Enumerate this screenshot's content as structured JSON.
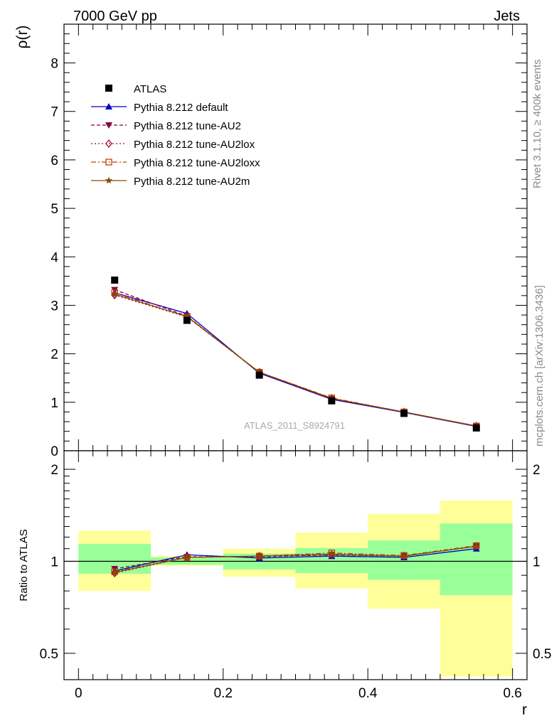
{
  "header": {
    "left": "7000 GeV pp",
    "right": "Jets"
  },
  "side_text": {
    "rivet": "Rivet 3.1.10, ≥ 400k events",
    "mcplots": "mcplots.cern.ch [arXiv:1306.3436]"
  },
  "colors": {
    "data": "#000000",
    "default": "#0000cc",
    "AU2": "#800040",
    "AU2lox": "#a0004a",
    "AU2loxx": "#c04000",
    "AU2m": "#8a4a00",
    "band_inner": "#99ff99",
    "band_outer": "#ffff99"
  },
  "chart_data": [
    {
      "type": "line",
      "panel": "main",
      "ylabel": "ρ(r)",
      "xlim": [
        -0.02,
        0.62
      ],
      "ylim": [
        0,
        8.8
      ],
      "yticks": [
        0,
        1,
        2,
        3,
        4,
        5,
        6,
        7,
        8
      ],
      "yticklabels": [
        "0",
        "1",
        "2",
        "3",
        "4",
        "5",
        "6",
        "7",
        "8"
      ],
      "watermark": "ATLAS_2011_S8924791",
      "legend_position": "top-left",
      "x": [
        0.05,
        0.15,
        0.25,
        0.35,
        0.45,
        0.55
      ],
      "series": [
        {
          "key": "data",
          "name": "ATLAS",
          "values": [
            3.52,
            2.69,
            1.56,
            1.03,
            0.77,
            0.47
          ]
        },
        {
          "key": "default",
          "name": "Pythia 8.212 default",
          "values": [
            3.26,
            2.83,
            1.6,
            1.06,
            0.79,
            0.5
          ]
        },
        {
          "key": "AU2",
          "name": "Pythia 8.212 tune-AU2",
          "values": [
            3.32,
            2.78,
            1.61,
            1.07,
            0.8,
            0.51
          ]
        },
        {
          "key": "AU2lox",
          "name": "Pythia 8.212 tune-AU2lox",
          "values": [
            3.21,
            2.76,
            1.62,
            1.08,
            0.8,
            0.51
          ]
        },
        {
          "key": "AU2loxx",
          "name": "Pythia 8.212 tune-AU2loxx",
          "values": [
            3.26,
            2.76,
            1.62,
            1.09,
            0.8,
            0.51
          ]
        },
        {
          "key": "AU2m",
          "name": "Pythia 8.212 tune-AU2m",
          "values": [
            3.23,
            2.77,
            1.62,
            1.08,
            0.8,
            0.51
          ]
        }
      ]
    },
    {
      "type": "line",
      "panel": "ratio",
      "ylabel": "Ratio to ATLAS",
      "xlabel": "r",
      "xlim": [
        -0.02,
        0.62
      ],
      "ylim": [
        0.41,
        2.3
      ],
      "yticks": [
        0.5,
        1,
        2
      ],
      "yticklabels": [
        "0.5",
        "1",
        "2"
      ],
      "xticks": [
        0,
        0.2,
        0.4,
        0.6
      ],
      "xticklabels": [
        "0",
        "0.2",
        "0.4",
        "0.6"
      ],
      "bins": [
        [
          0.0,
          0.1
        ],
        [
          0.1,
          0.2
        ],
        [
          0.2,
          0.3
        ],
        [
          0.3,
          0.4
        ],
        [
          0.4,
          0.5
        ],
        [
          0.5,
          0.6
        ]
      ],
      "band_inner": [
        [
          0.91,
          1.14
        ],
        [
          0.975,
          1.03
        ],
        [
          0.94,
          1.06
        ],
        [
          0.915,
          1.105
        ],
        [
          0.87,
          1.17
        ],
        [
          0.775,
          1.33
        ]
      ],
      "band_outer": [
        [
          0.8,
          1.26
        ],
        [
          0.965,
          1.04
        ],
        [
          0.89,
          1.1
        ],
        [
          0.815,
          1.24
        ],
        [
          0.7,
          1.43
        ],
        [
          0.42,
          1.58
        ]
      ],
      "x": [
        0.05,
        0.15,
        0.25,
        0.35,
        0.45,
        0.55
      ],
      "series": [
        {
          "key": "default",
          "name": "Pythia 8.212 default",
          "values": [
            0.93,
            1.05,
            1.025,
            1.04,
            1.03,
            1.1
          ]
        },
        {
          "key": "AU2",
          "name": "Pythia 8.212 tune-AU2",
          "values": [
            0.945,
            1.035,
            1.035,
            1.05,
            1.04,
            1.12
          ]
        },
        {
          "key": "AU2lox",
          "name": "Pythia 8.212 tune-AU2lox",
          "values": [
            0.915,
            1.03,
            1.04,
            1.05,
            1.04,
            1.12
          ]
        },
        {
          "key": "AU2loxx",
          "name": "Pythia 8.212 tune-AU2loxx",
          "values": [
            0.925,
            1.03,
            1.04,
            1.065,
            1.045,
            1.125
          ]
        },
        {
          "key": "AU2m",
          "name": "Pythia 8.212 tune-AU2m",
          "values": [
            0.92,
            1.03,
            1.04,
            1.055,
            1.04,
            1.12
          ]
        }
      ]
    }
  ]
}
